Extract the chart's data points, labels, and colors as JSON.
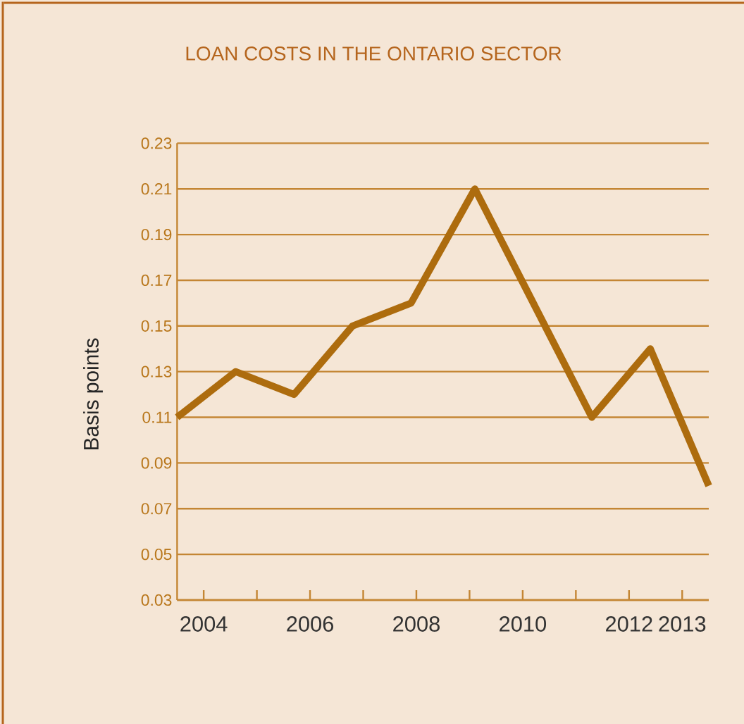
{
  "chart_data": {
    "type": "line",
    "title": "LOAN COSTS IN THE ONTARIO SECTOR",
    "ylabel": "Basis points",
    "x": [
      2003.5,
      2004.6,
      2005.7,
      2006.8,
      2007.9,
      2009.1,
      2010.2,
      2011.3,
      2012.4,
      2013.5
    ],
    "series": [
      {
        "color": "#ad6c0e",
        "values": [
          0.11,
          0.13,
          0.12,
          0.15,
          0.16,
          0.21,
          0.16,
          0.11,
          0.14,
          0.08
        ]
      }
    ],
    "xlim": [
      2003.5,
      2013.5
    ],
    "xticks": [
      2004,
      {
        "value": 2005,
        "label": null
      },
      2006,
      {
        "value": 2007,
        "label": null
      },
      2008,
      {
        "value": 2009,
        "label": null
      },
      2010,
      {
        "value": 2011,
        "label": null
      },
      2012,
      2013
    ],
    "ylim": [
      0.03,
      0.23
    ],
    "yticks": [
      0.03,
      0.05,
      0.07,
      0.09,
      0.11,
      0.13,
      0.15,
      0.17,
      0.19,
      0.21,
      0.23
    ],
    "grid": "y",
    "marker": "none",
    "line_style": "solid"
  }
}
